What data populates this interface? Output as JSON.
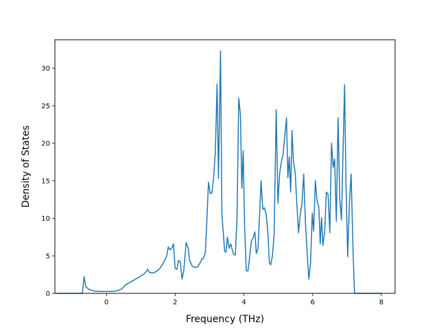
{
  "chart_data": {
    "type": "line",
    "title": "",
    "xlabel": "Frequency (THz)",
    "ylabel": "Density of States",
    "xlim": [
      -1.5,
      8.4
    ],
    "ylim": [
      0,
      33.8
    ],
    "xticks": [
      0,
      2,
      4,
      6,
      8
    ],
    "xtick_labels": [
      "0",
      "2",
      "4",
      "6",
      "8"
    ],
    "yticks": [
      0,
      5,
      10,
      15,
      20,
      25,
      30
    ],
    "ytick_labels": [
      "0",
      "5",
      "10",
      "15",
      "20",
      "25",
      "30"
    ],
    "grid": false,
    "legend": "none",
    "series": [
      {
        "color": "#1f77b4",
        "points": [
          [
            -1.45,
            0
          ],
          [
            -0.7,
            0
          ],
          [
            -0.65,
            2.2
          ],
          [
            -0.6,
            0.9
          ],
          [
            -0.5,
            0.5
          ],
          [
            -0.35,
            0.3
          ],
          [
            -0.1,
            0.25
          ],
          [
            0.1,
            0.25
          ],
          [
            0.25,
            0.3
          ],
          [
            0.35,
            0.4
          ],
          [
            0.45,
            0.6
          ],
          [
            0.55,
            1.1
          ],
          [
            0.7,
            1.5
          ],
          [
            0.85,
            1.9
          ],
          [
            1.0,
            2.3
          ],
          [
            1.1,
            2.6
          ],
          [
            1.2,
            3.2
          ],
          [
            1.25,
            2.8
          ],
          [
            1.35,
            2.7
          ],
          [
            1.45,
            2.9
          ],
          [
            1.55,
            3.3
          ],
          [
            1.65,
            4.0
          ],
          [
            1.75,
            4.9
          ],
          [
            1.8,
            6.2
          ],
          [
            1.85,
            5.8
          ],
          [
            1.9,
            6.0
          ],
          [
            1.95,
            6.6
          ],
          [
            2.0,
            3.3
          ],
          [
            2.05,
            3.2
          ],
          [
            2.1,
            4.4
          ],
          [
            2.15,
            4.2
          ],
          [
            2.2,
            1.9
          ],
          [
            2.25,
            3.0
          ],
          [
            2.32,
            6.8
          ],
          [
            2.38,
            6.0
          ],
          [
            2.42,
            4.4
          ],
          [
            2.5,
            3.6
          ],
          [
            2.55,
            3.5
          ],
          [
            2.65,
            3.5
          ],
          [
            2.72,
            4.0
          ],
          [
            2.78,
            4.6
          ],
          [
            2.82,
            4.6
          ],
          [
            2.88,
            5.5
          ],
          [
            2.92,
            9.5
          ],
          [
            2.97,
            14.8
          ],
          [
            3.02,
            13.3
          ],
          [
            3.07,
            13.4
          ],
          [
            3.12,
            15.5
          ],
          [
            3.17,
            19.0
          ],
          [
            3.22,
            27.9
          ],
          [
            3.26,
            15.3
          ],
          [
            3.32,
            32.3
          ],
          [
            3.36,
            10.6
          ],
          [
            3.41,
            7.5
          ],
          [
            3.44,
            5.6
          ],
          [
            3.48,
            5.5
          ],
          [
            3.52,
            7.5
          ],
          [
            3.57,
            6.0
          ],
          [
            3.62,
            6.6
          ],
          [
            3.66,
            5.8
          ],
          [
            3.7,
            5.2
          ],
          [
            3.75,
            5.1
          ],
          [
            3.8,
            10.0
          ],
          [
            3.85,
            26.0
          ],
          [
            3.9,
            23.8
          ],
          [
            3.94,
            14.0
          ],
          [
            3.98,
            19.0
          ],
          [
            4.02,
            9.0
          ],
          [
            4.07,
            3.0
          ],
          [
            4.12,
            3.0
          ],
          [
            4.17,
            5.0
          ],
          [
            4.22,
            7.0
          ],
          [
            4.27,
            7.4
          ],
          [
            4.32,
            8.2
          ],
          [
            4.36,
            5.3
          ],
          [
            4.41,
            6.0
          ],
          [
            4.46,
            10.8
          ],
          [
            4.5,
            15.0
          ],
          [
            4.55,
            11.2
          ],
          [
            4.6,
            11.4
          ],
          [
            4.65,
            10.5
          ],
          [
            4.7,
            8.0
          ],
          [
            4.74,
            4.1
          ],
          [
            4.78,
            3.8
          ],
          [
            4.83,
            5.0
          ],
          [
            4.88,
            7.8
          ],
          [
            4.94,
            24.5
          ],
          [
            4.99,
            12.0
          ],
          [
            5.04,
            16.0
          ],
          [
            5.09,
            17.5
          ],
          [
            5.14,
            18.5
          ],
          [
            5.19,
            21.0
          ],
          [
            5.24,
            23.4
          ],
          [
            5.28,
            15.4
          ],
          [
            5.32,
            18.2
          ],
          [
            5.36,
            13.5
          ],
          [
            5.4,
            21.7
          ],
          [
            5.44,
            17.7
          ],
          [
            5.49,
            16.2
          ],
          [
            5.54,
            12.0
          ],
          [
            5.59,
            8.1
          ],
          [
            5.64,
            10.5
          ],
          [
            5.69,
            12.0
          ],
          [
            5.74,
            15.9
          ],
          [
            5.79,
            9.5
          ],
          [
            5.84,
            5.5
          ],
          [
            5.89,
            1.9
          ],
          [
            5.94,
            4.0
          ],
          [
            5.99,
            10.7
          ],
          [
            6.03,
            8.3
          ],
          [
            6.08,
            15.0
          ],
          [
            6.13,
            12.3
          ],
          [
            6.18,
            11.5
          ],
          [
            6.22,
            6.6
          ],
          [
            6.26,
            10.1
          ],
          [
            6.3,
            6.4
          ],
          [
            6.35,
            8.2
          ],
          [
            6.4,
            13.5
          ],
          [
            6.45,
            13.2
          ],
          [
            6.5,
            8.1
          ],
          [
            6.55,
            20.0
          ],
          [
            6.6,
            16.8
          ],
          [
            6.64,
            17.9
          ],
          [
            6.69,
            9.6
          ],
          [
            6.74,
            23.4
          ],
          [
            6.79,
            12.5
          ],
          [
            6.84,
            9.8
          ],
          [
            6.88,
            18.0
          ],
          [
            6.93,
            27.8
          ],
          [
            6.97,
            14.8
          ],
          [
            7.02,
            4.9
          ],
          [
            7.07,
            12.0
          ],
          [
            7.12,
            15.9
          ],
          [
            7.18,
            5.0
          ],
          [
            7.22,
            0
          ],
          [
            8.0,
            0
          ]
        ]
      }
    ]
  }
}
